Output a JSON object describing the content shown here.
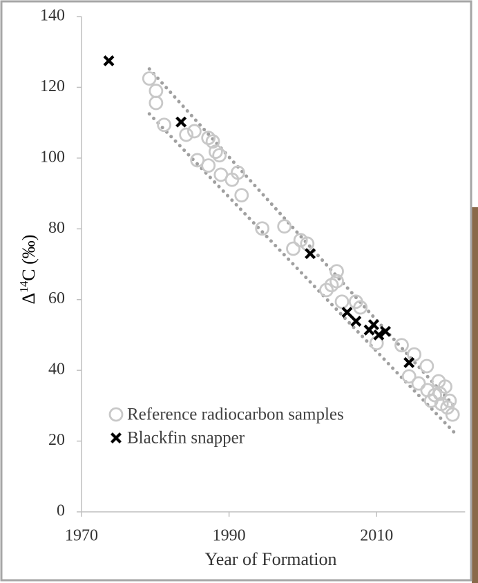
{
  "chart_data": {
    "type": "scatter",
    "xlabel": "Year of Formation",
    "ylabel_parts": [
      "Δ",
      "14",
      "C (‰)"
    ],
    "xlim": [
      1970,
      2022
    ],
    "ylim": [
      0,
      140
    ],
    "xticks": [
      1970,
      1990,
      2010
    ],
    "yticks": [
      0,
      20,
      40,
      60,
      80,
      100,
      120,
      140
    ],
    "series": [
      {
        "name": "Reference radiocarbon samples",
        "color": "#c8c8c8",
        "marker": "circle",
        "x": [
          1979.2,
          1980.1,
          1980.1,
          1981.2,
          1984.2,
          1985.3,
          1987.2,
          1987.8,
          1985.7,
          1987.2,
          1988.2,
          1988.7,
          1988.9,
          1990.4,
          1991.2,
          1991.7,
          1994.5,
          1997.5,
          1998.7,
          1999.7,
          2000.6,
          2003.2,
          2003.9,
          2004.6,
          2004.6,
          2005.3,
          2007.2,
          2007.8,
          2010,
          2013.4,
          2014.4,
          2015.1,
          2015.7,
          2016.8,
          2016.9,
          2017.4,
          2017.9,
          2018.4,
          2018.6,
          2018.8,
          2019.3,
          2019.6,
          2019.9,
          2020.3
        ],
        "values": [
          122.5,
          119,
          115.6,
          109.4,
          106.6,
          107.6,
          105.7,
          104.7,
          99.4,
          97.9,
          101.8,
          100.8,
          95.3,
          93.9,
          95.9,
          89.5,
          80.1,
          80.7,
          74.4,
          76.8,
          75.8,
          62.7,
          64.1,
          65.2,
          68,
          59.4,
          59.4,
          57.8,
          47.7,
          47.1,
          38.3,
          44.5,
          36.3,
          41.2,
          34.4,
          31.4,
          33,
          36.9,
          33.4,
          30.5,
          35.4,
          29.5,
          31.4,
          27.5
        ]
      },
      {
        "name": "Blackfin snapper",
        "color": "#000000",
        "marker": "x",
        "x": [
          1973.7,
          1983.5,
          2001,
          2006,
          2007.2,
          2009,
          2009.6,
          2010.3,
          2011.2,
          2014.4
        ],
        "values": [
          127.5,
          110.2,
          73,
          56.4,
          53.9,
          51.4,
          52.9,
          50,
          51,
          42.2
        ]
      }
    ],
    "bands": [
      {
        "color": "#a0a0a0",
        "x": [
          1979.2,
          2020.7
        ],
        "values": [
          125.2,
          29.5
        ]
      },
      {
        "color": "#a0a0a0",
        "x": [
          1979.2,
          2020.5
        ],
        "values": [
          112.5,
          22.5
        ]
      }
    ]
  }
}
